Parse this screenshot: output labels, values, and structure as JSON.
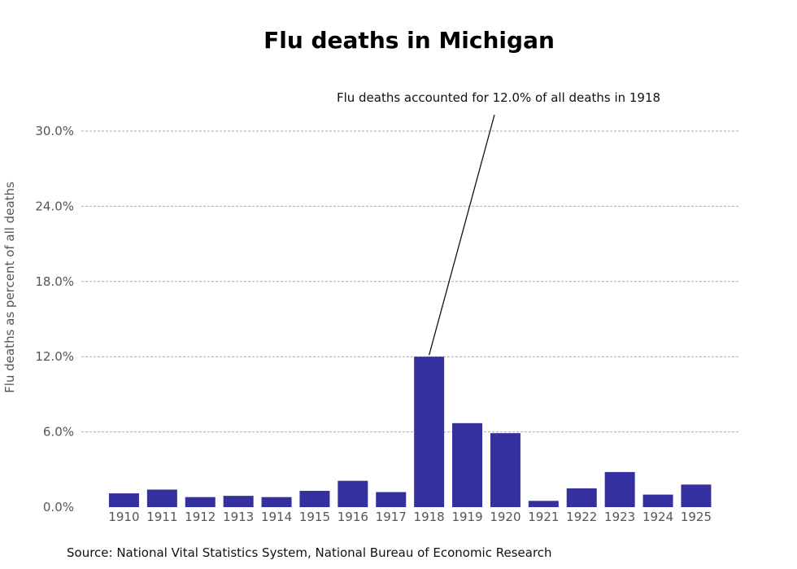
{
  "chart_data": {
    "type": "bar",
    "title": "Flu deaths in Michigan",
    "ylabel": "Flu deaths as percent of all deaths",
    "xlabel": "",
    "categories": [
      "1910",
      "1911",
      "1912",
      "1913",
      "1914",
      "1915",
      "1916",
      "1917",
      "1918",
      "1919",
      "1920",
      "1921",
      "1922",
      "1923",
      "1924",
      "1925"
    ],
    "values": [
      1.1,
      1.4,
      0.8,
      0.9,
      0.8,
      1.3,
      2.1,
      1.2,
      12.0,
      6.7,
      5.9,
      0.5,
      1.5,
      2.8,
      1.0,
      1.8
    ],
    "ylim": [
      0,
      30
    ],
    "yticks": [
      0,
      6,
      12,
      18,
      24,
      30
    ],
    "ytick_labels": [
      "0.0%",
      "6.0%",
      "12.0%",
      "18.0%",
      "24.0%",
      "30.0%"
    ],
    "grid": true,
    "bar_color": "#3430a0",
    "annotation": {
      "text": "Flu deaths accounted for 12.0% of all deaths in 1918",
      "category": "1918",
      "value": 12.0
    },
    "source": "Source: National Vital Statistics System, National Bureau of Economic Research"
  }
}
